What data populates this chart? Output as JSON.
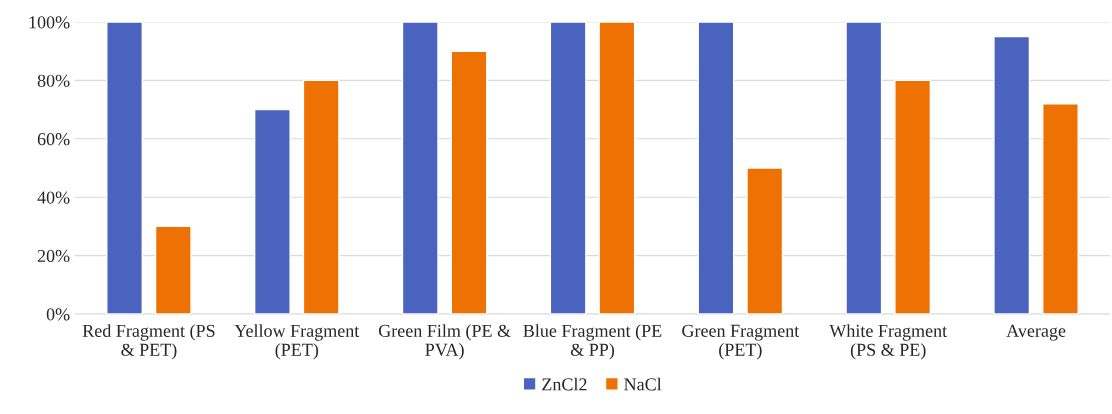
{
  "chart_data": {
    "type": "bar",
    "categories": [
      "Red Fragment (PS & PET)",
      "Yellow Fragment (PET)",
      "Green Film (PE & PVA)",
      "Blue Fragment (PE & PP)",
      "Green Fragment (PET)",
      "White Fragment (PS & PE)",
      "Average"
    ],
    "series": [
      {
        "name": "ZnCl2",
        "color": "#4a63be",
        "values": [
          100,
          70,
          100,
          100,
          100,
          100,
          95
        ]
      },
      {
        "name": "NaCl",
        "color": "#ee7203",
        "values": [
          30,
          80,
          90,
          100,
          50,
          80,
          72
        ]
      }
    ],
    "ylim": [
      0,
      100
    ],
    "yticks": [
      {
        "value": 0,
        "label": "0%"
      },
      {
        "value": 20,
        "label": "20%"
      },
      {
        "value": 40,
        "label": "40%"
      },
      {
        "value": 60,
        "label": "60%"
      },
      {
        "value": 80,
        "label": "80%"
      },
      {
        "value": 100,
        "label": "100%"
      }
    ],
    "grid": "y",
    "legend": "bottom"
  }
}
